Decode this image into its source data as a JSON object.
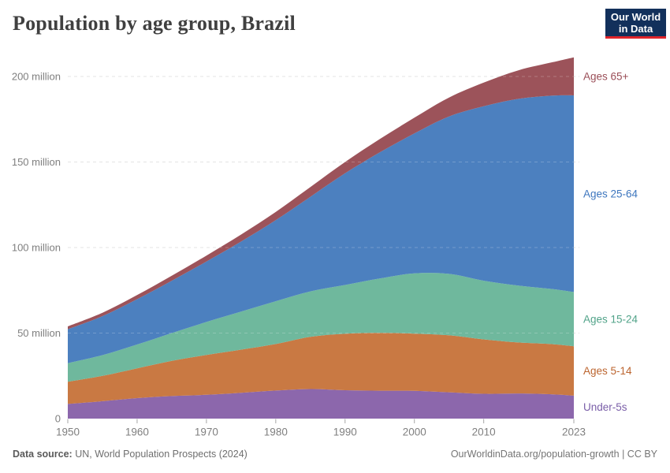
{
  "header": {
    "title": "Population by age group, Brazil",
    "logo": {
      "line1": "Our World",
      "line2": "in Data",
      "bg_color": "#12305B",
      "accent_color": "#E0242A"
    }
  },
  "footer": {
    "source_label": "Data source:",
    "source_text": " UN, World Population Prospects (2024)",
    "credit": "OurWorldinData.org/population-growth | CC BY"
  },
  "chart_data": {
    "type": "area",
    "stacked": true,
    "title": "Population by age group, Brazil",
    "values_unit": "millions of people",
    "xlabel": "",
    "ylabel": "",
    "xlim": [
      1950,
      2023
    ],
    "ylim": [
      0,
      215
    ],
    "grid": "dashed-horizontal",
    "gridline_color": "#dcdcdc",
    "legend_position": "right",
    "x": [
      1950,
      1955,
      1960,
      1965,
      1970,
      1975,
      1980,
      1985,
      1990,
      1995,
      2000,
      2005,
      2010,
      2015,
      2020,
      2023
    ],
    "series": [
      {
        "name": "Under-5s",
        "color": "#8C67AC",
        "label_color": "#7A5EA8",
        "values": [
          8.6,
          10.2,
          12.0,
          13.2,
          13.9,
          15.1,
          16.4,
          17.3,
          16.6,
          16.3,
          16.2,
          15.4,
          14.5,
          14.7,
          14.2,
          13.4
        ]
      },
      {
        "name": "Ages 5-14",
        "color": "#C97943",
        "label_color": "#BC652F",
        "values": [
          12.9,
          14.8,
          17.4,
          20.6,
          23.3,
          25.2,
          27.2,
          30.5,
          33.0,
          33.8,
          33.5,
          33.3,
          31.8,
          29.8,
          29.3,
          28.9
        ]
      },
      {
        "name": "Ages 15-24",
        "color": "#6FB89D",
        "label_color": "#51A389",
        "values": [
          10.9,
          12.1,
          13.9,
          16.2,
          19.3,
          22.3,
          25.0,
          26.6,
          28.5,
          31.8,
          35.2,
          35.9,
          34.3,
          33.3,
          32.2,
          31.7
        ]
      },
      {
        "name": "Ages 25-64",
        "color": "#4C80BF",
        "label_color": "#3D76BE",
        "values": [
          19.8,
          22.8,
          26.5,
          30.6,
          35.3,
          40.9,
          47.4,
          55.3,
          65.3,
          73.7,
          81.8,
          92.0,
          102.0,
          109.1,
          113.1,
          114.9
        ]
      },
      {
        "name": "Ages 65+",
        "color": "#9C535A",
        "label_color": "#9A4E57",
        "values": [
          1.7,
          2.0,
          2.4,
          2.9,
          3.5,
          4.1,
          4.8,
          5.7,
          6.6,
          7.8,
          9.2,
          11.1,
          13.8,
          16.7,
          19.6,
          22.3
        ]
      }
    ],
    "y_ticks": [
      {
        "value": 0,
        "label": "0"
      },
      {
        "value": 50,
        "label": "50 million"
      },
      {
        "value": 100,
        "label": "100 million"
      },
      {
        "value": 150,
        "label": "150 million"
      },
      {
        "value": 200,
        "label": "200 million"
      }
    ],
    "x_ticks": [
      {
        "value": 1950,
        "label": "1950"
      },
      {
        "value": 1960,
        "label": "1960"
      },
      {
        "value": 1970,
        "label": "1970"
      },
      {
        "value": 1980,
        "label": "1980"
      },
      {
        "value": 1990,
        "label": "1990"
      },
      {
        "value": 2000,
        "label": "2000"
      },
      {
        "value": 2010,
        "label": "2010"
      },
      {
        "value": 2023,
        "label": "2023"
      }
    ],
    "axis_text_color": "#7f7f7f"
  }
}
